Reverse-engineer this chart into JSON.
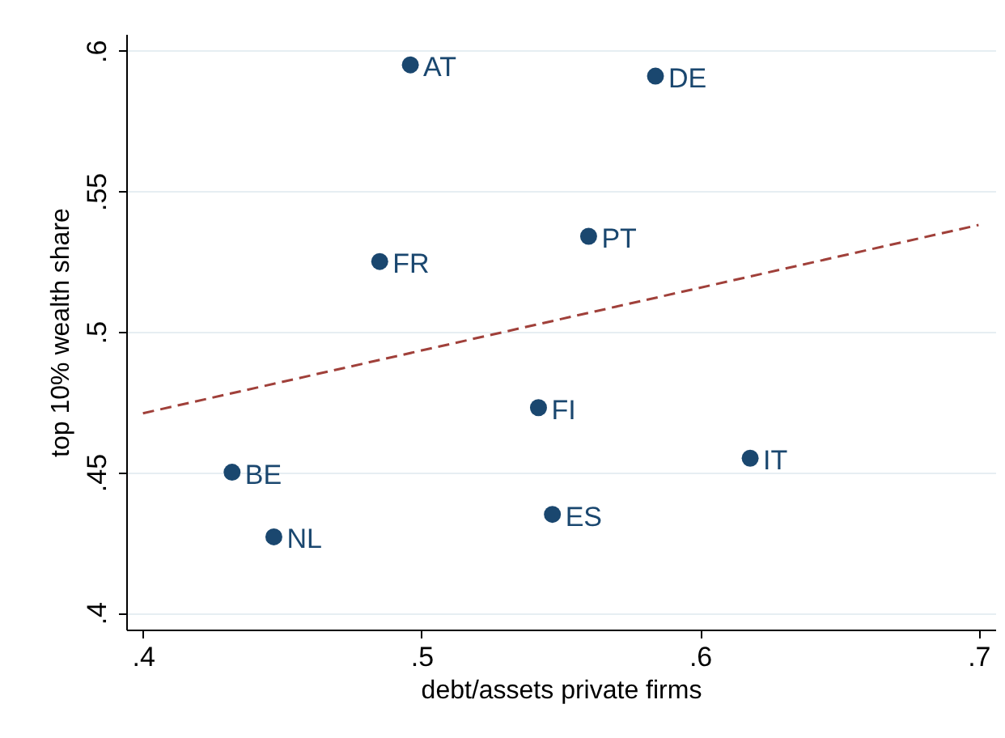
{
  "chart_data": {
    "type": "scatter",
    "xlabel": "debt/assets private firms",
    "ylabel": "top 10% wealth share",
    "xlim": [
      0.394,
      0.706
    ],
    "ylim": [
      0.394,
      0.606
    ],
    "xticks": [
      {
        "value": 0.4,
        "label": ".4"
      },
      {
        "value": 0.5,
        "label": ".5"
      },
      {
        "value": 0.6,
        "label": ".6"
      },
      {
        "value": 0.7,
        "label": ".7"
      }
    ],
    "yticks": [
      {
        "value": 0.4,
        "label": ".4"
      },
      {
        "value": 0.45,
        "label": ".45"
      },
      {
        "value": 0.5,
        "label": ".5"
      },
      {
        "value": 0.55,
        "label": ".55"
      },
      {
        "value": 0.6,
        "label": ".6"
      }
    ],
    "grid": "y",
    "series": [
      {
        "color": "#1a476f",
        "marker": "circle",
        "x": [
          0.496,
          0.584,
          0.56,
          0.485,
          0.542,
          0.618,
          0.432,
          0.547,
          0.447
        ],
        "values": [
          0.595,
          0.591,
          0.534,
          0.525,
          0.473,
          0.455,
          0.45,
          0.435,
          0.427
        ]
      },
      {
        "type": "line",
        "color": "#a0403a",
        "line_style": "dashed",
        "x": [
          0.4,
          0.7
        ],
        "values": [
          0.471,
          0.538
        ]
      }
    ],
    "annotations": [
      {
        "text": "AT",
        "x": 0.496,
        "y": 0.595
      },
      {
        "text": "DE",
        "x": 0.584,
        "y": 0.591
      },
      {
        "text": "PT",
        "x": 0.56,
        "y": 0.534
      },
      {
        "text": "FR",
        "x": 0.485,
        "y": 0.525
      },
      {
        "text": "FI",
        "x": 0.542,
        "y": 0.473
      },
      {
        "text": "IT",
        "x": 0.618,
        "y": 0.455
      },
      {
        "text": "BE",
        "x": 0.432,
        "y": 0.45
      },
      {
        "text": "ES",
        "x": 0.547,
        "y": 0.435
      },
      {
        "text": "NL",
        "x": 0.447,
        "y": 0.427
      }
    ]
  }
}
